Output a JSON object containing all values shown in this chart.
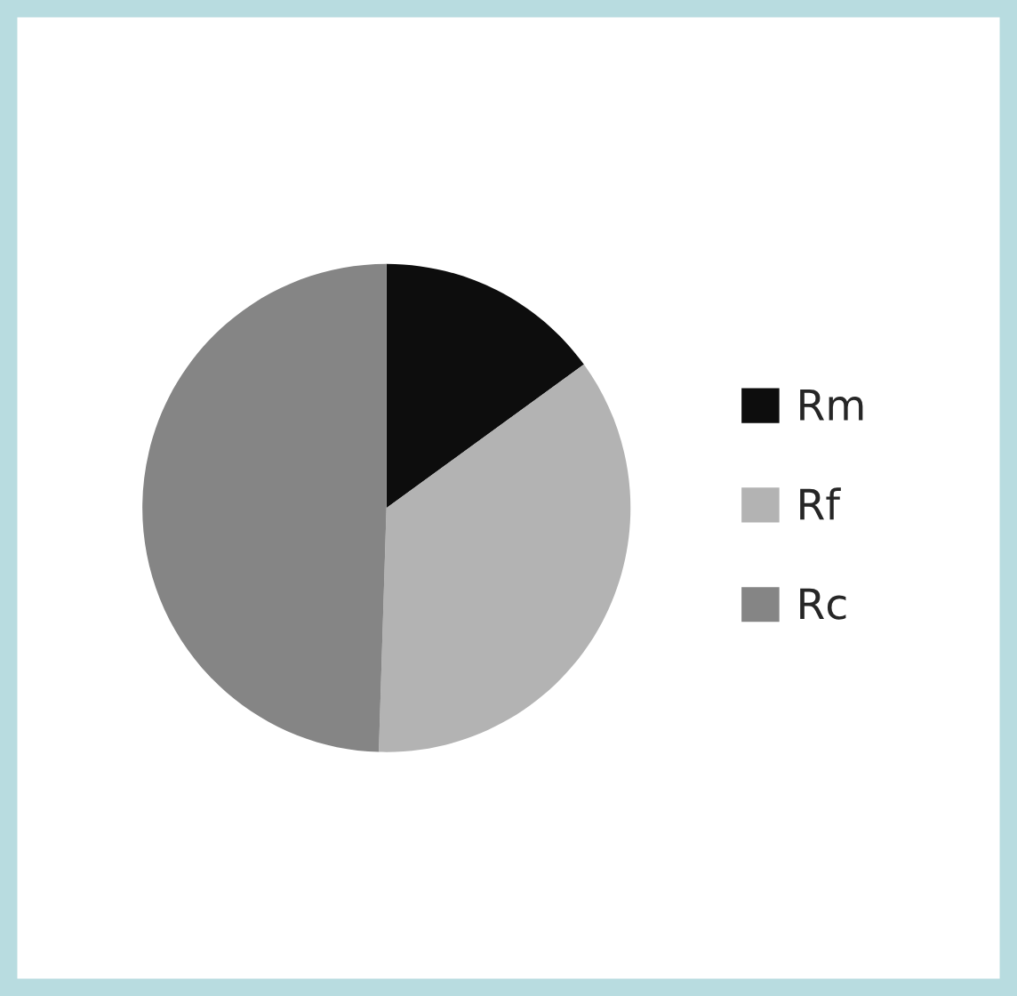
{
  "chart_data": {
    "type": "pie",
    "categories": [
      "Rm",
      "Rf",
      "Rc"
    ],
    "values": [
      15,
      35.5,
      49.5
    ],
    "colors": [
      "#0d0d0d",
      "#b3b3b3",
      "#858585"
    ],
    "legend": "right"
  }
}
